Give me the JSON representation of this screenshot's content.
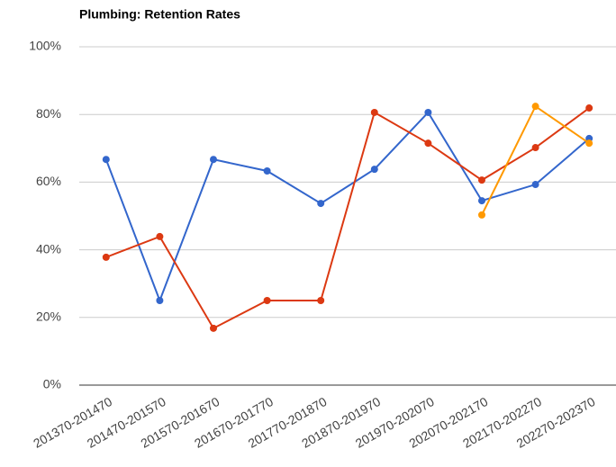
{
  "chart_data": {
    "type": "line",
    "title": "Plumbing: Retention Rates",
    "categories": [
      "201370-201470",
      "201470-201570",
      "201570-201670",
      "201670-201770",
      "201770-201870",
      "201870-201970",
      "201970-202070",
      "202070-202170",
      "202170-202270",
      "202270-202370"
    ],
    "series": [
      {
        "color": "#3366cc",
        "values": [
          66.7,
          25,
          66.7,
          63.3,
          53.7,
          63.8,
          80.6,
          54.5,
          59.3,
          72.9
        ]
      },
      {
        "color": "#dc3912",
        "values": [
          37.8,
          43.9,
          16.8,
          25,
          25,
          80.6,
          71.5,
          60.6,
          70.2,
          81.9
        ]
      },
      {
        "color": "#ff9900",
        "values": [
          null,
          null,
          null,
          null,
          null,
          null,
          null,
          50.3,
          82.4,
          71.5
        ]
      }
    ],
    "ylim": [
      0,
      100
    ],
    "yticks": [
      {
        "value": 0,
        "label": "0%"
      },
      {
        "value": 20,
        "label": "20%"
      },
      {
        "value": 40,
        "label": "40%"
      },
      {
        "value": 60,
        "label": "60%"
      },
      {
        "value": 80,
        "label": "80%"
      },
      {
        "value": 100,
        "label": "100%"
      }
    ],
    "grid": true
  }
}
